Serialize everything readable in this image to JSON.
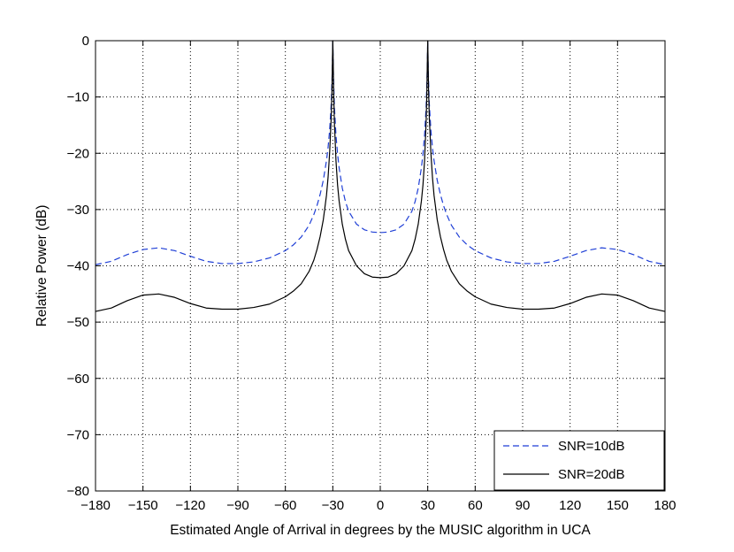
{
  "chart_data": {
    "type": "line",
    "title": "",
    "xlabel": "Estimated Angle of Arrival in degrees by the MUSIC algorithm in UCA",
    "ylabel": "Relative Power (dB)",
    "xlim": [
      -180,
      180
    ],
    "ylim": [
      -80,
      0
    ],
    "xticks": [
      -180,
      -150,
      -120,
      -90,
      -60,
      -30,
      0,
      30,
      60,
      90,
      120,
      150,
      180
    ],
    "yticks": [
      0,
      -10,
      -20,
      -30,
      -40,
      -50,
      -60,
      -70,
      -80
    ],
    "xtick_labels": [
      "−180",
      "−150",
      "−120",
      "−90",
      "−60",
      "−30",
      "0",
      "30",
      "60",
      "90",
      "120",
      "150",
      "180"
    ],
    "ytick_labels": [
      "0",
      "−10",
      "−20",
      "−30",
      "−40",
      "−50",
      "−60",
      "−70",
      "−80"
    ],
    "grid": true,
    "legend_position": "bottom-right",
    "series": [
      {
        "name": "SNR=10dB",
        "color": "#1f3fd6",
        "style": "dashed",
        "x": [
          -180,
          -170,
          -160,
          -150,
          -140,
          -130,
          -120,
          -110,
          -100,
          -90,
          -80,
          -70,
          -60,
          -55,
          -50,
          -45,
          -42,
          -40,
          -38,
          -36,
          -34,
          -33,
          -32,
          -31,
          -30.3,
          -30,
          -29.7,
          -29,
          -28,
          -27,
          -26,
          -24,
          -22,
          -20,
          -15,
          -10,
          -5,
          0,
          5,
          10,
          15,
          20,
          22,
          24,
          26,
          27,
          28,
          29,
          29.7,
          30,
          30.3,
          31,
          32,
          33,
          34,
          36,
          38,
          40,
          42,
          45,
          50,
          55,
          60,
          70,
          80,
          90,
          100,
          110,
          120,
          130,
          140,
          150,
          160,
          170,
          180
        ],
        "y": [
          -39.8,
          -39.2,
          -38.0,
          -37.1,
          -36.8,
          -37.3,
          -38.3,
          -39.2,
          -39.6,
          -39.6,
          -39.3,
          -38.6,
          -37.3,
          -36.3,
          -34.9,
          -32.8,
          -30.9,
          -29.3,
          -27.3,
          -24.8,
          -21.3,
          -19.0,
          -15.9,
          -11.2,
          -5.0,
          0,
          -5.0,
          -11.7,
          -16.8,
          -20.1,
          -22.6,
          -26.2,
          -28.6,
          -30.3,
          -32.6,
          -33.6,
          -34.0,
          -34.1,
          -34.0,
          -33.6,
          -32.6,
          -30.3,
          -28.6,
          -26.2,
          -22.6,
          -20.1,
          -16.8,
          -11.7,
          -5.0,
          0,
          -5.0,
          -11.2,
          -15.9,
          -19.0,
          -21.3,
          -24.8,
          -27.3,
          -29.3,
          -30.9,
          -32.8,
          -34.9,
          -36.3,
          -37.3,
          -38.6,
          -39.3,
          -39.6,
          -39.6,
          -39.2,
          -38.3,
          -37.3,
          -36.8,
          -37.1,
          -38.0,
          -39.2,
          -39.8
        ]
      },
      {
        "name": "SNR=20dB",
        "color": "#000000",
        "style": "solid",
        "x": [
          -180,
          -170,
          -160,
          -150,
          -140,
          -130,
          -120,
          -110,
          -100,
          -90,
          -80,
          -70,
          -60,
          -55,
          -50,
          -45,
          -42,
          -40,
          -38,
          -36,
          -34,
          -33,
          -32,
          -31,
          -30.5,
          -30.2,
          -30,
          -29.8,
          -29.5,
          -29,
          -28,
          -27,
          -26,
          -24,
          -22,
          -20,
          -15,
          -10,
          -5,
          0,
          5,
          10,
          15,
          20,
          22,
          24,
          26,
          27,
          28,
          29,
          29.5,
          29.8,
          30,
          30.2,
          30.5,
          31,
          32,
          33,
          34,
          36,
          38,
          40,
          42,
          45,
          50,
          55,
          60,
          70,
          80,
          90,
          100,
          110,
          120,
          130,
          140,
          150,
          160,
          170,
          180
        ],
        "y": [
          -48.1,
          -47.5,
          -46.2,
          -45.2,
          -45.0,
          -45.6,
          -46.7,
          -47.5,
          -47.7,
          -47.7,
          -47.4,
          -46.8,
          -45.5,
          -44.5,
          -43.2,
          -41.0,
          -39.0,
          -37.1,
          -34.8,
          -31.8,
          -27.5,
          -24.3,
          -19.9,
          -13.6,
          -8.5,
          -3.0,
          0,
          -3.0,
          -8.5,
          -14.4,
          -21.3,
          -25.6,
          -28.5,
          -32.6,
          -35.3,
          -37.3,
          -40.0,
          -41.4,
          -42.0,
          -42.1,
          -42.0,
          -41.4,
          -40.0,
          -37.3,
          -35.3,
          -32.6,
          -28.5,
          -25.6,
          -21.3,
          -14.4,
          -8.5,
          -3.0,
          0,
          -3.0,
          -8.5,
          -13.6,
          -19.9,
          -24.3,
          -27.5,
          -31.8,
          -34.8,
          -37.1,
          -39.0,
          -41.0,
          -43.2,
          -44.5,
          -45.5,
          -46.8,
          -47.4,
          -47.7,
          -47.7,
          -47.5,
          -46.7,
          -45.6,
          -45.0,
          -45.2,
          -46.2,
          -47.5,
          -48.1
        ]
      }
    ]
  }
}
